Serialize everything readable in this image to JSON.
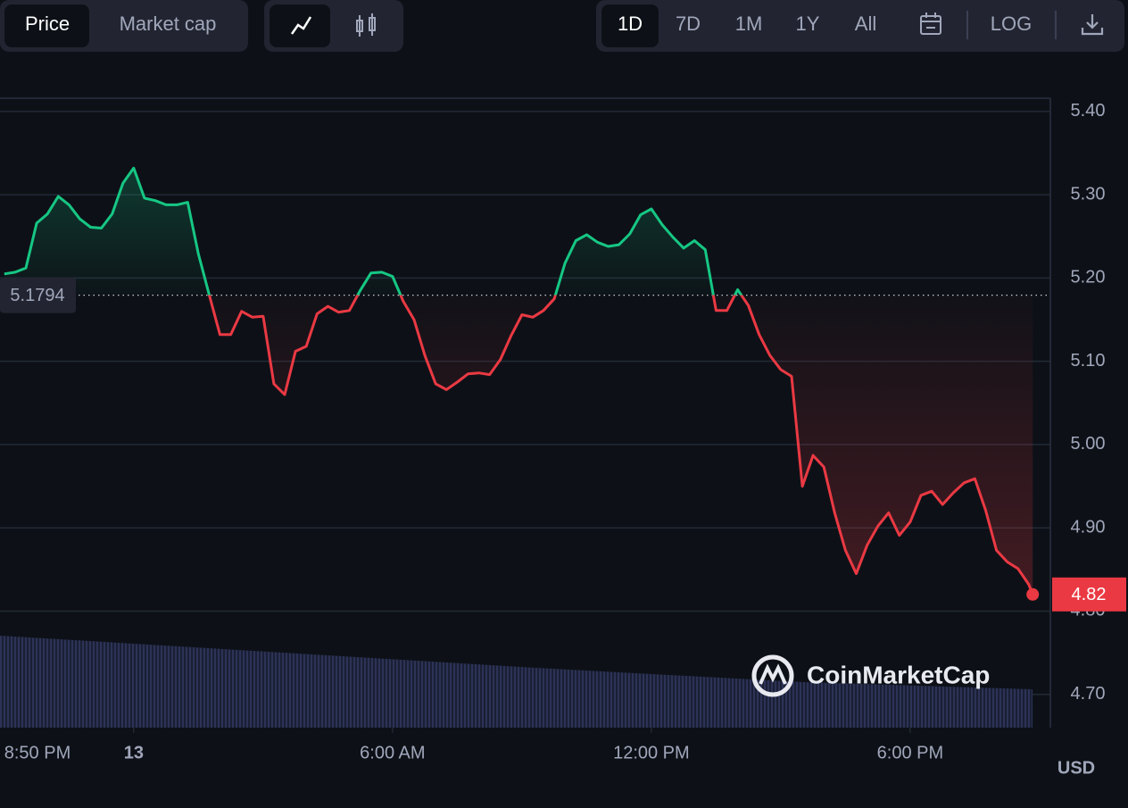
{
  "toolbar": {
    "price": "Price",
    "market_cap": "Market cap",
    "ranges": [
      "1D",
      "7D",
      "1M",
      "1Y",
      "All"
    ],
    "log": "LOG"
  },
  "chart_data": {
    "type": "line",
    "x": [
      -3,
      -2.75,
      -2.5,
      -2.25,
      -2,
      -1.75,
      -1.5,
      -1.25,
      -1,
      -0.75,
      -0.5,
      -0.25,
      0,
      0.25,
      0.5,
      0.75,
      1,
      1.25,
      1.5,
      1.75,
      2,
      2.25,
      2.5,
      2.75,
      3,
      3.25,
      3.5,
      3.75,
      4,
      4.25,
      4.5,
      4.75,
      5,
      5.25,
      5.5,
      5.75,
      6,
      6.25,
      6.5,
      6.75,
      7,
      7.25,
      7.5,
      7.75,
      8,
      8.25,
      8.5,
      8.75,
      9,
      9.25,
      9.5,
      9.75,
      10,
      10.25,
      10.5,
      10.75,
      11,
      11.25,
      11.5,
      11.75,
      12,
      12.25,
      12.5,
      12.75,
      13,
      13.25,
      13.5,
      13.75,
      14,
      14.25,
      14.5,
      14.75,
      15,
      15.25,
      15.5,
      15.75,
      16,
      16.25,
      16.5,
      16.75,
      17,
      17.25,
      17.5,
      17.75,
      18,
      18.25,
      18.5,
      18.75,
      19,
      19.25,
      19.5,
      19.75,
      20,
      20.25,
      20.5,
      20.75,
      20.84
    ],
    "values": [
      5.205,
      5.207,
      5.212,
      5.266,
      5.277,
      5.298,
      5.288,
      5.271,
      5.261,
      5.26,
      5.277,
      5.314,
      5.332,
      5.296,
      5.293,
      5.288,
      5.288,
      5.291,
      5.229,
      5.18,
      5.132,
      5.132,
      5.16,
      5.153,
      5.154,
      5.073,
      5.06,
      5.112,
      5.118,
      5.157,
      5.166,
      5.159,
      5.161,
      5.185,
      5.206,
      5.207,
      5.202,
      5.172,
      5.15,
      5.107,
      5.073,
      5.066,
      5.075,
      5.085,
      5.086,
      5.084,
      5.102,
      5.131,
      5.156,
      5.153,
      5.161,
      5.175,
      5.218,
      5.245,
      5.252,
      5.243,
      5.238,
      5.24,
      5.253,
      5.276,
      5.283,
      5.264,
      5.249,
      5.236,
      5.245,
      5.234,
      5.161,
      5.161,
      5.186,
      5.167,
      5.132,
      5.107,
      5.09,
      5.082,
      4.95,
      4.987,
      4.973,
      4.918,
      4.873,
      4.845,
      4.879,
      4.902,
      4.918,
      4.891,
      4.907,
      4.939,
      4.944,
      4.928,
      4.942,
      4.954,
      4.959,
      4.921,
      4.873,
      4.859,
      4.851,
      4.832,
      4.82
    ],
    "color_up": "#16c784",
    "color_down": "#ea3943",
    "reference_value": 5.1794,
    "xlim": [
      -3.1,
      21.25
    ],
    "xticks": [
      {
        "value": -3.1667,
        "label": "8:50 PM"
      },
      {
        "value": 0,
        "label": "13"
      },
      {
        "value": 6,
        "label": "6:00 AM"
      },
      {
        "value": 12,
        "label": "12:00 PM"
      },
      {
        "value": 18,
        "label": "6:00 PM"
      }
    ],
    "ylim": [
      4.66,
      5.416
    ],
    "yticks": [
      {
        "value": 4.7,
        "label": "4.70"
      },
      {
        "value": 4.8,
        "label": "4.80"
      },
      {
        "value": 4.9,
        "label": "4.90"
      },
      {
        "value": 5.0,
        "label": "5.00"
      },
      {
        "value": 5.1,
        "label": "5.10"
      },
      {
        "value": 5.2,
        "label": "5.20"
      },
      {
        "value": 5.3,
        "label": "5.30"
      },
      {
        "value": 5.4,
        "label": "5.40"
      }
    ],
    "grid": true,
    "currency": "USD",
    "watermark": "CoinMarketCap"
  }
}
